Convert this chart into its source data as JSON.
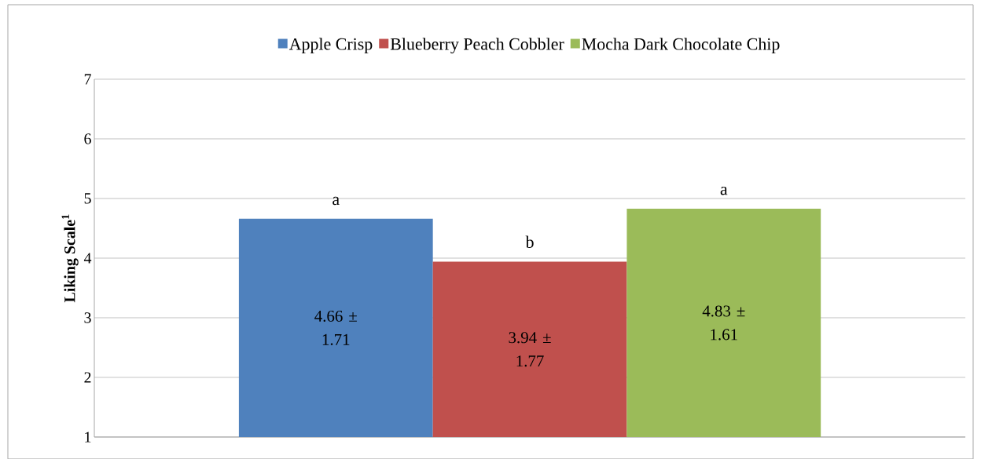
{
  "chart_data": {
    "type": "bar",
    "ylabel": "Liking Scale$^{1}$",
    "categories": [
      null
    ],
    "series": [
      {
        "name": "Apple Crisp",
        "color": "#4f81bd",
        "values": [
          4.66
        ],
        "value_labels": [
          "4.66 ± 1.71"
        ]
      },
      {
        "name": "Blueberry Peach Cobbler",
        "color": "#c0504d",
        "values": [
          3.94
        ],
        "value_labels": [
          "3.94 ± 1.77"
        ]
      },
      {
        "name": "Mocha Dark Chocolate Chip",
        "color": "#9bbb59",
        "values": [
          4.83
        ],
        "value_labels": [
          "4.83 ± 1.61"
        ]
      }
    ],
    "annotations": [
      "a",
      "b",
      "a"
    ],
    "ylim": [
      1,
      7
    ],
    "yticks": [
      1,
      2,
      3,
      4,
      5,
      6,
      7
    ],
    "grid": "y",
    "legend": "top",
    "tick_labels": "y"
  }
}
